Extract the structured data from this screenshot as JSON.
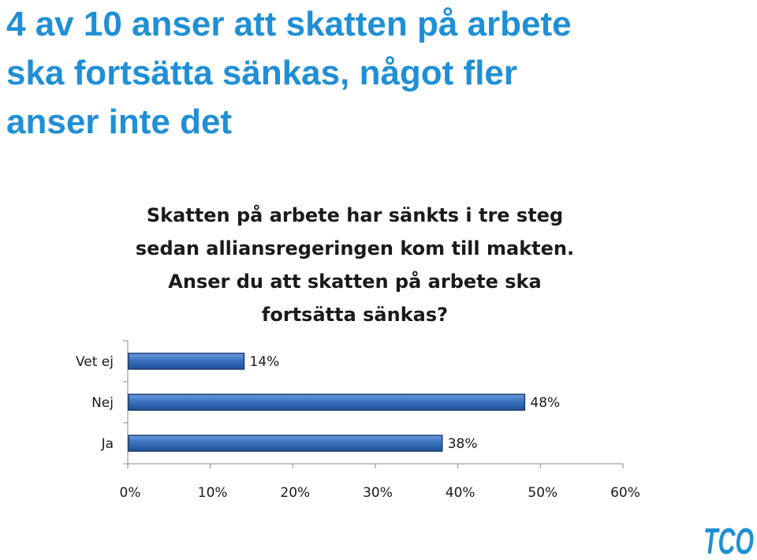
{
  "headline": {
    "lines": [
      "4 av 10 anser att skatten på arbete",
      "ska fortsätta sänkas, något fler",
      "anser inte det"
    ]
  },
  "question": {
    "lines": [
      "Skatten på arbete har sänkts i tre steg",
      "sedan alliansregeringen kom till makten.",
      "Anser du att skatten på arbete ska",
      "fortsätta sänkas?"
    ]
  },
  "chart_data": {
    "type": "bar",
    "orientation": "horizontal",
    "categories": [
      "Vet ej",
      "Nej",
      "Ja"
    ],
    "values": [
      14,
      48,
      38
    ],
    "data_labels": [
      "14%",
      "48%",
      "38%"
    ],
    "xlim": [
      0,
      60
    ],
    "xticks": [
      "0%",
      "10%",
      "20%",
      "30%",
      "40%",
      "50%",
      "60%"
    ],
    "grid": false,
    "bar_color": "#3a73bf"
  },
  "logo": {
    "text": "TCO",
    "color": "#1f8fd6"
  }
}
